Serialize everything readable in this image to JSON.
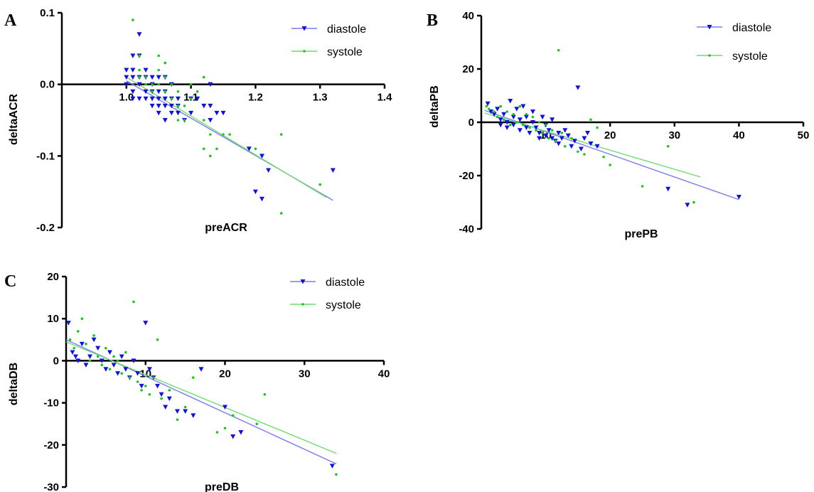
{
  "colors": {
    "diastole": "#1010e0",
    "systole": "#18c818",
    "diastole_line": "#7b7bef",
    "systole_line": "#6fdc6f"
  },
  "chart_data": [
    {
      "type": "scatter",
      "panel": "A",
      "xlabel": "preACR",
      "ylabel": "deltaACR",
      "xlim": [
        0.9,
        1.4
      ],
      "ylim": [
        -0.2,
        0.1
      ],
      "x_ticks": [
        "1.0",
        "1.1",
        "1.2",
        "1.3",
        "1.4"
      ],
      "y_ticks": [
        "0.1",
        "0.0",
        "-0.1",
        "-0.2"
      ],
      "x_tick_values": [
        1.0,
        1.1,
        1.2,
        1.3,
        1.4
      ],
      "y_tick_values": [
        0.1,
        0.0,
        -0.1,
        -0.2
      ],
      "legend": [
        "diastole",
        "systole"
      ],
      "series": [
        {
          "name": "diastole",
          "marker": "triangle-down",
          "points": [
            [
              1.0,
              0.02
            ],
            [
              1.0,
              0.01
            ],
            [
              1.0,
              0.0
            ],
            [
              1.01,
              0.04
            ],
            [
              1.01,
              0.02
            ],
            [
              1.01,
              0.01
            ],
            [
              1.01,
              -0.01
            ],
            [
              1.01,
              -0.02
            ],
            [
              1.02,
              0.07
            ],
            [
              1.02,
              0.04
            ],
            [
              1.02,
              0.01
            ],
            [
              1.02,
              0.0
            ],
            [
              1.02,
              -0.02
            ],
            [
              1.03,
              0.02
            ],
            [
              1.03,
              0.01
            ],
            [
              1.03,
              -0.01
            ],
            [
              1.03,
              -0.02
            ],
            [
              1.04,
              0.01
            ],
            [
              1.04,
              0.0
            ],
            [
              1.04,
              -0.01
            ],
            [
              1.04,
              -0.02
            ],
            [
              1.04,
              -0.03
            ],
            [
              1.05,
              0.01
            ],
            [
              1.05,
              -0.01
            ],
            [
              1.05,
              -0.02
            ],
            [
              1.05,
              -0.03
            ],
            [
              1.05,
              -0.04
            ],
            [
              1.06,
              0.01
            ],
            [
              1.06,
              -0.01
            ],
            [
              1.06,
              -0.02
            ],
            [
              1.06,
              -0.03
            ],
            [
              1.06,
              -0.05
            ],
            [
              1.07,
              0.0
            ],
            [
              1.07,
              -0.02
            ],
            [
              1.07,
              -0.03
            ],
            [
              1.07,
              -0.04
            ],
            [
              1.08,
              -0.02
            ],
            [
              1.08,
              -0.03
            ],
            [
              1.08,
              -0.04
            ],
            [
              1.09,
              -0.05
            ],
            [
              1.1,
              -0.02
            ],
            [
              1.1,
              -0.04
            ],
            [
              1.11,
              -0.02
            ],
            [
              1.12,
              -0.03
            ],
            [
              1.13,
              0.0
            ],
            [
              1.13,
              -0.03
            ],
            [
              1.13,
              -0.05
            ],
            [
              1.14,
              -0.04
            ],
            [
              1.15,
              -0.04
            ],
            [
              1.19,
              -0.09
            ],
            [
              1.2,
              -0.15
            ],
            [
              1.21,
              -0.1
            ],
            [
              1.21,
              -0.16
            ],
            [
              1.22,
              -0.12
            ],
            [
              1.32,
              -0.12
            ]
          ],
          "fit": [
            [
              1.0,
              0.005
            ],
            [
              1.32,
              -0.162
            ]
          ]
        },
        {
          "name": "systole",
          "marker": "dot",
          "points": [
            [
              1.01,
              0.09
            ],
            [
              1.02,
              0.04
            ],
            [
              1.02,
              0.02
            ],
            [
              1.02,
              0.01
            ],
            [
              1.03,
              0.01
            ],
            [
              1.03,
              0.0
            ],
            [
              1.04,
              0.0
            ],
            [
              1.04,
              -0.01
            ],
            [
              1.05,
              0.04
            ],
            [
              1.05,
              0.02
            ],
            [
              1.05,
              0.0
            ],
            [
              1.06,
              0.03
            ],
            [
              1.06,
              0.01
            ],
            [
              1.06,
              -0.01
            ],
            [
              1.07,
              0.0
            ],
            [
              1.07,
              -0.02
            ],
            [
              1.08,
              -0.01
            ],
            [
              1.08,
              -0.03
            ],
            [
              1.08,
              -0.05
            ],
            [
              1.09,
              -0.03
            ],
            [
              1.09,
              -0.05
            ],
            [
              1.1,
              0.0
            ],
            [
              1.1,
              -0.02
            ],
            [
              1.11,
              -0.01
            ],
            [
              1.12,
              0.01
            ],
            [
              1.12,
              -0.05
            ],
            [
              1.12,
              -0.09
            ],
            [
              1.13,
              -0.07
            ],
            [
              1.13,
              -0.1
            ],
            [
              1.14,
              -0.09
            ],
            [
              1.15,
              -0.07
            ],
            [
              1.16,
              -0.07
            ],
            [
              1.2,
              -0.09
            ],
            [
              1.24,
              -0.07
            ],
            [
              1.24,
              -0.18
            ],
            [
              1.3,
              -0.14
            ]
          ],
          "fit": [
            [
              1.0,
              0.01
            ],
            [
              1.31,
              -0.158
            ]
          ]
        }
      ]
    },
    {
      "type": "scatter",
      "panel": "B",
      "xlabel": "prePB",
      "ylabel": "deltaPB",
      "xlim": [
        0,
        50
      ],
      "ylim": [
        -40,
        40
      ],
      "x_ticks": [
        "10",
        "20",
        "30",
        "40",
        "50"
      ],
      "y_ticks": [
        "40",
        "20",
        "0",
        "-20",
        "-40"
      ],
      "x_tick_values": [
        10,
        20,
        30,
        40,
        50
      ],
      "y_tick_values": [
        40,
        20,
        0,
        -20,
        -40
      ],
      "legend": [
        "diastole",
        "systole"
      ],
      "series": [
        {
          "name": "diastole",
          "marker": "triangle-down",
          "points": [
            [
              1,
              7
            ],
            [
              1.5,
              4
            ],
            [
              2,
              3
            ],
            [
              2.5,
              5
            ],
            [
              3,
              1
            ],
            [
              3,
              -1
            ],
            [
              3.5,
              3
            ],
            [
              4,
              0
            ],
            [
              4,
              -2
            ],
            [
              4.5,
              8
            ],
            [
              5,
              2
            ],
            [
              5,
              -1
            ],
            [
              5.5,
              5
            ],
            [
              6,
              1
            ],
            [
              6,
              -3
            ],
            [
              6.5,
              6
            ],
            [
              7,
              2
            ],
            [
              7,
              -2
            ],
            [
              7.5,
              -4
            ],
            [
              8,
              4
            ],
            [
              8,
              0
            ],
            [
              8.5,
              -2
            ],
            [
              9,
              -4
            ],
            [
              9,
              -6
            ],
            [
              9.5,
              2
            ],
            [
              10,
              -1
            ],
            [
              10,
              -5
            ],
            [
              10.5,
              -3
            ],
            [
              11,
              1
            ],
            [
              11,
              -6
            ],
            [
              11.5,
              -7
            ],
            [
              12,
              -4
            ],
            [
              12,
              -8
            ],
            [
              12.5,
              -6
            ],
            [
              13,
              -3
            ],
            [
              13.5,
              -5
            ],
            [
              14,
              -9
            ],
            [
              14.5,
              -7
            ],
            [
              15,
              13
            ],
            [
              15.5,
              -10
            ],
            [
              16,
              -6
            ],
            [
              16.5,
              -4
            ],
            [
              17,
              -8
            ],
            [
              18,
              -9
            ],
            [
              29,
              -25
            ],
            [
              32,
              -31
            ],
            [
              40,
              -28
            ]
          ],
          "fit": [
            [
              0.5,
              4.5
            ],
            [
              40,
              -29
            ]
          ]
        },
        {
          "name": "systole",
          "marker": "dot",
          "points": [
            [
              0.8,
              6
            ],
            [
              1.2,
              5
            ],
            [
              2,
              4
            ],
            [
              2.5,
              2
            ],
            [
              3,
              6
            ],
            [
              3.5,
              1
            ],
            [
              4,
              4
            ],
            [
              4.5,
              -1
            ],
            [
              5,
              3
            ],
            [
              5.5,
              0
            ],
            [
              6,
              6
            ],
            [
              6.5,
              -1
            ],
            [
              7,
              3
            ],
            [
              7.5,
              -2
            ],
            [
              8,
              2
            ],
            [
              8.5,
              -3
            ],
            [
              9,
              0
            ],
            [
              9.5,
              -4
            ],
            [
              10,
              -1
            ],
            [
              10.5,
              -6
            ],
            [
              11,
              -3
            ],
            [
              11.5,
              -7
            ],
            [
              12,
              27
            ],
            [
              12.5,
              -4
            ],
            [
              13,
              -9
            ],
            [
              14,
              -6
            ],
            [
              15,
              -11
            ],
            [
              16,
              -12
            ],
            [
              17,
              1
            ],
            [
              18,
              -2
            ],
            [
              19,
              -13
            ],
            [
              20,
              -16
            ],
            [
              25,
              -24
            ],
            [
              29,
              -9
            ],
            [
              33,
              -30
            ]
          ],
          "fit": [
            [
              0.5,
              3.5
            ],
            [
              34,
              -20.5
            ]
          ]
        }
      ]
    },
    {
      "type": "scatter",
      "panel": "C",
      "xlabel": "preDB",
      "ylabel": "deltaDB",
      "xlim": [
        0,
        40
      ],
      "ylim": [
        -30,
        20
      ],
      "x_ticks": [
        "10",
        "20",
        "30",
        "40"
      ],
      "y_ticks": [
        "20",
        "10",
        "0",
        "-10",
        "-20",
        "-30"
      ],
      "x_tick_values": [
        10,
        20,
        30,
        40
      ],
      "y_tick_values": [
        20,
        10,
        0,
        -10,
        -20,
        -30
      ],
      "legend": [
        "diastole",
        "systole"
      ],
      "series": [
        {
          "name": "diastole",
          "marker": "triangle-down",
          "points": [
            [
              0.3,
              9
            ],
            [
              0.8,
              2
            ],
            [
              1.2,
              1
            ],
            [
              1.5,
              0
            ],
            [
              2,
              4
            ],
            [
              2.5,
              -1
            ],
            [
              3,
              1
            ],
            [
              3.5,
              5
            ],
            [
              4,
              3
            ],
            [
              4.5,
              0
            ],
            [
              5,
              -2
            ],
            [
              5.5,
              2
            ],
            [
              6,
              -1
            ],
            [
              6.5,
              -3
            ],
            [
              7,
              1
            ],
            [
              7.5,
              -2
            ],
            [
              8,
              -4
            ],
            [
              8.5,
              0
            ],
            [
              9,
              -3
            ],
            [
              9.5,
              -6
            ],
            [
              10,
              9
            ],
            [
              10.5,
              -2
            ],
            [
              11,
              -4
            ],
            [
              11.5,
              -6
            ],
            [
              12,
              -8
            ],
            [
              12.5,
              -11
            ],
            [
              13,
              -9
            ],
            [
              14,
              -12
            ],
            [
              15,
              -12
            ],
            [
              16,
              -13
            ],
            [
              17,
              -2
            ],
            [
              20,
              -11
            ],
            [
              21,
              -18
            ],
            [
              22,
              -17
            ],
            [
              33.5,
              -25
            ]
          ],
          "fit": [
            [
              0,
              5
            ],
            [
              34,
              -24.5
            ]
          ]
        },
        {
          "name": "systole",
          "marker": "dot",
          "points": [
            [
              0.5,
              5
            ],
            [
              1,
              3
            ],
            [
              1.5,
              7
            ],
            [
              2,
              10
            ],
            [
              2.5,
              4
            ],
            [
              3,
              0
            ],
            [
              3.5,
              6
            ],
            [
              4,
              1
            ],
            [
              4.5,
              -1
            ],
            [
              5,
              3
            ],
            [
              5.5,
              -2
            ],
            [
              6,
              1
            ],
            [
              6.5,
              0
            ],
            [
              7,
              -3
            ],
            [
              7.5,
              2
            ],
            [
              8,
              -4
            ],
            [
              8.5,
              14
            ],
            [
              9,
              -5
            ],
            [
              9.5,
              -7
            ],
            [
              10,
              -6
            ],
            [
              10.5,
              -8
            ],
            [
              11,
              -4
            ],
            [
              11.5,
              5
            ],
            [
              12,
              -9
            ],
            [
              13,
              -7
            ],
            [
              14,
              -14
            ],
            [
              15,
              -11
            ],
            [
              16,
              -4
            ],
            [
              19,
              -17
            ],
            [
              20,
              -16
            ],
            [
              21,
              -13
            ],
            [
              24,
              -15
            ],
            [
              25,
              -8
            ],
            [
              34,
              -27
            ]
          ],
          "fit": [
            [
              0,
              4.5
            ],
            [
              34,
              -22
            ]
          ]
        }
      ]
    }
  ]
}
